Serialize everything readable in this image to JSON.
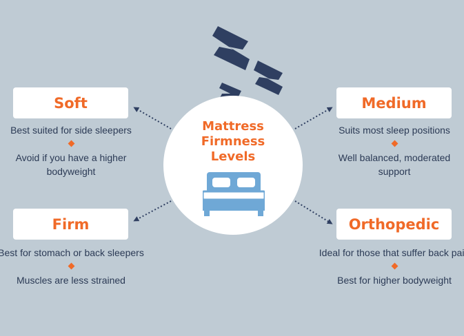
{
  "diagram": {
    "center": {
      "title_lines": [
        "Mattress",
        "Firmness",
        "Levels"
      ]
    },
    "icons": {
      "sleep": "zzz-sleep-icon",
      "bed": "bed-icon",
      "separator": "diamond-icon"
    },
    "colors": {
      "background": "#bfcbd4",
      "accent": "#f06a28",
      "text": "#2b3a55",
      "bed": "#6fa8d6",
      "zzz": "#2f3f61"
    },
    "levels": {
      "soft": {
        "label": "Soft",
        "line1": "Best suited for side sleepers",
        "line2a": "Avoid if you have a higher",
        "line2b": "bodyweight"
      },
      "medium": {
        "label": "Medium",
        "line1": "Suits most sleep positions",
        "line2a": "Well balanced, moderated",
        "line2b": "support"
      },
      "firm": {
        "label": "Firm",
        "line1": "Best for stomach or back sleepers",
        "line2a": "Muscles are less strained"
      },
      "orthopedic": {
        "label": "Orthopedic",
        "line1": "Ideal for those that suffer back pain",
        "line2a": "Best for higher bodyweight"
      }
    }
  }
}
